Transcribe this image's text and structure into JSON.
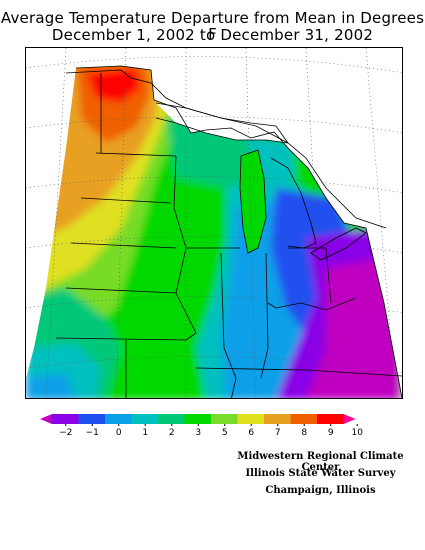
{
  "title": {
    "line1": "Average Temperature Departure from Mean in Degrees F",
    "line2": "December 1, 2002 to December 31, 2002"
  },
  "legend": {
    "ticks": [
      "−2",
      "−1",
      "0",
      "1",
      "2",
      "3",
      "5",
      "6",
      "7",
      "8",
      "9",
      "10"
    ],
    "colors": [
      "#c000c0",
      "#8a00e6",
      "#2050f0",
      "#0aa0e8",
      "#00c0c0",
      "#00c878",
      "#00d800",
      "#78dc28",
      "#e0e020",
      "#e8a020",
      "#f06000",
      "#ff0000",
      "#ff0090"
    ]
  },
  "map": {
    "color_scale_unit": "degrees F departure",
    "region": "Midwest"
  },
  "credit": {
    "line1": "Midwestern Regional Climate Center",
    "line2": "Illinois State Water Survey",
    "line3": "Champaign, Illinois"
  }
}
